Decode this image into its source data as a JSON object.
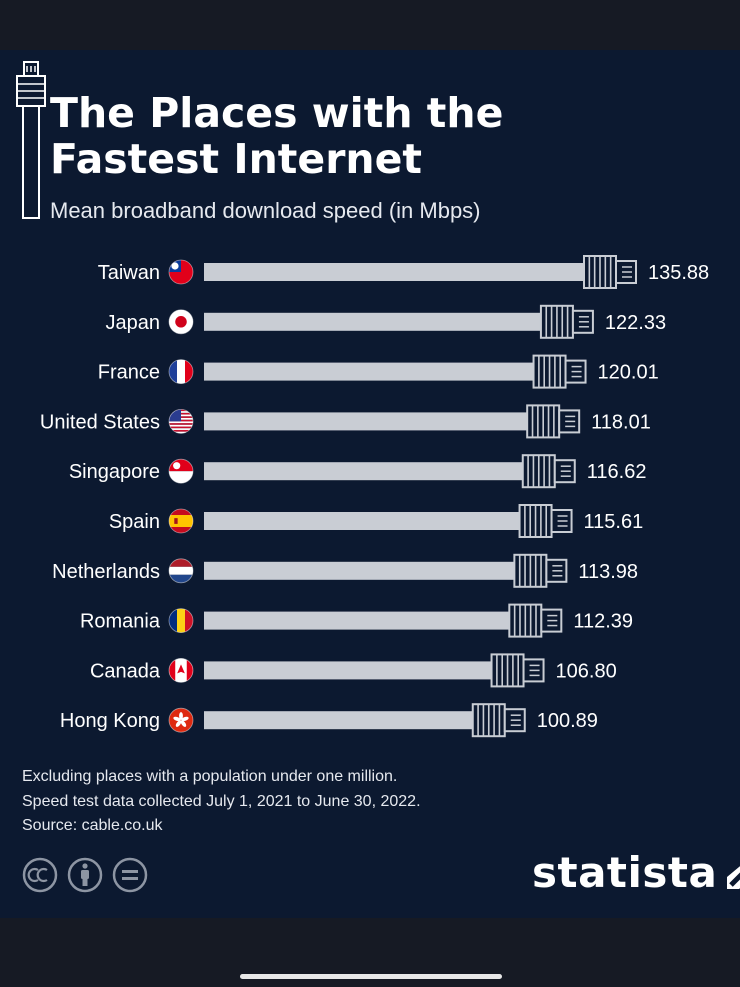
{
  "chart_data": {
    "type": "bar",
    "orientation": "horizontal",
    "title": "The Places with the Fastest Internet",
    "title_lines": [
      "The Places with the",
      "Fastest Internet"
    ],
    "subtitle": "Mean broadband download speed (in Mbps)",
    "categories": [
      "Taiwan",
      "Japan",
      "France",
      "United States",
      "Singapore",
      "Spain",
      "Netherlands",
      "Romania",
      "Canada",
      "Hong Kong"
    ],
    "values": [
      135.88,
      122.33,
      120.01,
      118.01,
      116.62,
      115.61,
      113.98,
      112.39,
      106.8,
      100.89
    ],
    "value_labels": [
      "135.88",
      "122.33",
      "120.01",
      "118.01",
      "116.62",
      "115.61",
      "113.98",
      "112.39",
      "106.80",
      "100.89"
    ],
    "flags": [
      "taiwan-flag-icon",
      "japan-flag-icon",
      "france-flag-icon",
      "united-states-flag-icon",
      "singapore-flag-icon",
      "spain-flag-icon",
      "netherlands-flag-icon",
      "romania-flag-icon",
      "canada-flag-icon",
      "hong-kong-flag-icon"
    ],
    "bar_style": "ethernet-cable",
    "bar_color": "#c9cdd4",
    "xlim": [
      0,
      140
    ],
    "grid": false,
    "legend": "none"
  },
  "footnotes": [
    "Excluding places with a population under one million.",
    "Speed test data collected July 1, 2021 to June 30, 2022.",
    "Source: cable.co.uk"
  ],
  "brand": {
    "logo_text": "statista"
  },
  "license_icons": [
    "creative-commons-icon",
    "attribution-icon",
    "no-derivatives-icon"
  ],
  "colors": {
    "background": "#0c1930",
    "text": "#ffffff",
    "bar": "#c9cdd4"
  }
}
